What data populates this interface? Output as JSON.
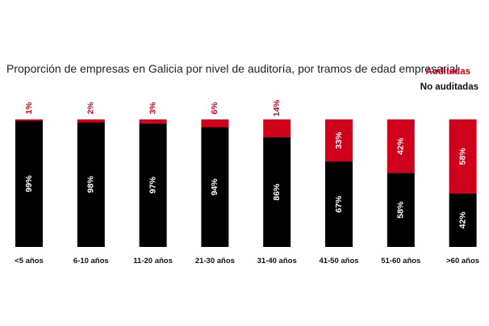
{
  "chart_data": {
    "type": "bar",
    "stacked": true,
    "title": "Proporción de empresas en Galicia por nivel de auditoría, por tramos de edad empresarial",
    "categories": [
      "<5 años",
      "6-10 años",
      "11-20 años",
      "21-30 años",
      "31-40 años",
      "41-50 años",
      "51-60 años",
      ">60 años"
    ],
    "series": [
      {
        "name": "No auditadas",
        "values": [
          99,
          98,
          97,
          94,
          86,
          67,
          58,
          42
        ],
        "labels": [
          "99%",
          "98%",
          "97%",
          "94%",
          "86%",
          "67%",
          "58%",
          "42%"
        ]
      },
      {
        "name": "Auditadas",
        "values": [
          1,
          2,
          3,
          6,
          14,
          33,
          42,
          58
        ],
        "labels": [
          "1%",
          "2%",
          "3%",
          "6%",
          "14%",
          "33%",
          "42%",
          "58%"
        ]
      }
    ],
    "ylim": [
      0,
      100
    ],
    "legend": "top-right",
    "grid": false,
    "colors": {
      "Auditadas": "#d0021b",
      "No auditadas": "#000000"
    }
  }
}
